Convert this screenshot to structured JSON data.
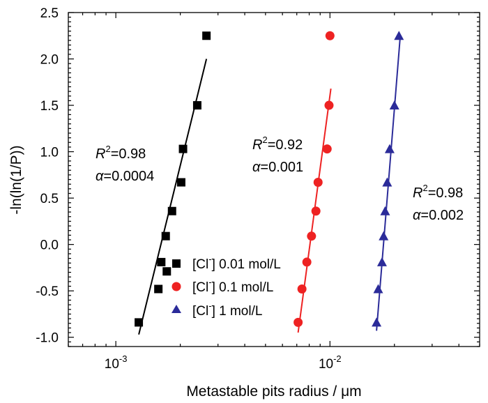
{
  "chart_data": {
    "type": "scatter",
    "xscale": "log",
    "xlim": [
      0.0006,
      0.05
    ],
    "ylim": [
      -1.1,
      2.5
    ],
    "xlabel": "Metastable pits radius / μm",
    "ylabel": "-ln(ln(1/P))",
    "yticks": [
      "-1.0",
      "-0.5",
      "0.0",
      "0.5",
      "1.0",
      "1.5",
      "2.0",
      "2.5"
    ],
    "xticks": [
      {
        "base": "10",
        "exp": "-3",
        "value": 0.001
      },
      {
        "base": "10",
        "exp": "-2",
        "value": 0.01
      }
    ],
    "series": [
      {
        "name": "[Cl⁻] 0.01 mol/L",
        "legend_label": {
          "pre": "[Cl",
          "sup": "-",
          "post": "] 0.01 mol/L"
        },
        "marker": "square",
        "color": "#000000",
        "x": [
          0.00128,
          0.00158,
          0.00173,
          0.00163,
          0.00171,
          0.00183,
          0.00202,
          0.00206,
          0.0024,
          0.00265
        ],
        "y": [
          -0.84,
          -0.48,
          -0.29,
          -0.19,
          0.09,
          0.36,
          0.67,
          1.03,
          1.5,
          2.25
        ],
        "fit": {
          "x": [
            0.00128,
            0.00265
          ],
          "y": [
            -0.97,
            2.0
          ]
        },
        "annotation": {
          "r_letter": "R",
          "r_sup": "2",
          "r_value": "=0.98",
          "alpha_symbol": "α",
          "alpha_value": "=0.0004"
        }
      },
      {
        "name": "[Cl⁻] 0.1 mol/L",
        "legend_label": {
          "pre": "[Cl",
          "sup": "-",
          "post": "] 0.1 mol/L"
        },
        "marker": "circle",
        "color": "#ee2222",
        "x": [
          0.0071,
          0.0074,
          0.0078,
          0.0082,
          0.0086,
          0.0088,
          0.0097,
          0.0099,
          0.01
        ],
        "y": [
          -0.84,
          -0.48,
          -0.19,
          0.09,
          0.36,
          0.67,
          1.03,
          1.5,
          2.25
        ],
        "fit": {
          "x": [
            0.0071,
            0.0101
          ],
          "y": [
            -0.95,
            1.68
          ]
        },
        "annotation": {
          "r_letter": "R",
          "r_sup": "2",
          "r_value": "=0.92",
          "alpha_symbol": "α",
          "alpha_value": "=0.001"
        }
      },
      {
        "name": "[Cl⁻] 1 mol/L",
        "legend_label": {
          "pre": "[Cl",
          "sup": "-",
          "post": "] 1 mol/L"
        },
        "marker": "triangle",
        "color": "#2b2b99",
        "x": [
          0.0165,
          0.0168,
          0.0175,
          0.0178,
          0.0181,
          0.0185,
          0.019,
          0.02,
          0.021
        ],
        "y": [
          -0.84,
          -0.48,
          -0.19,
          0.09,
          0.36,
          0.67,
          1.03,
          1.5,
          2.25
        ],
        "fit": {
          "x": [
            0.0165,
            0.0213
          ],
          "y": [
            -0.93,
            2.25
          ]
        },
        "annotation": {
          "r_letter": "R",
          "r_sup": "2",
          "r_value": "=0.98",
          "alpha_symbol": "α",
          "alpha_value": "=0.002"
        }
      }
    ]
  }
}
